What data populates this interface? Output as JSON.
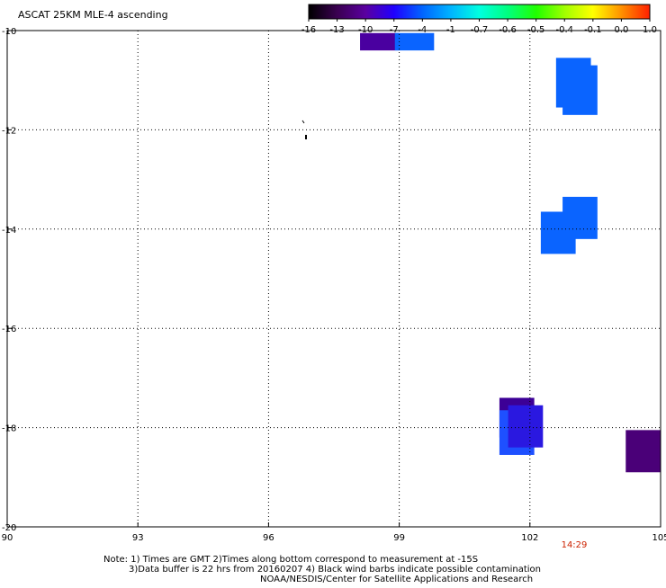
{
  "title": "ASCAT 25KM MLE-4 ascending",
  "colorbar": {
    "labels": [
      "-16",
      "-13",
      "-10",
      "-7",
      "-4",
      "-1",
      "-0.7",
      "-0.6",
      "-0.5",
      "-0.4",
      "-0.1",
      "0.0",
      "1.0"
    ],
    "colors": [
      "#000000",
      "#3a0050",
      "#5a00a0",
      "#2000ff",
      "#0064ff",
      "#00b4ff",
      "#00ffe0",
      "#00ff80",
      "#20ff00",
      "#a0ff00",
      "#ffff00",
      "#ff9000",
      "#ff2000"
    ]
  },
  "axes": {
    "x_ticks": [
      "90",
      "93",
      "96",
      "99",
      "102",
      "105"
    ],
    "y_ticks": [
      "-10",
      "-12",
      "-14",
      "-16",
      "-18",
      "-20"
    ],
    "x_range": [
      90,
      105
    ],
    "y_range": [
      -20,
      -10
    ],
    "grid": "dotted"
  },
  "swaths": [
    {
      "lon": [
        98.1,
        99.0
      ],
      "lat": [
        -10.4,
        -10.05
      ],
      "color": "#4a00a0"
    },
    {
      "lon": [
        98.9,
        99.8
      ],
      "lat": [
        -10.4,
        -10.05
      ],
      "color": "#0a64ff"
    },
    {
      "lon": [
        102.6,
        103.4
      ],
      "lat": [
        -11.55,
        -10.55
      ],
      "color": "#0a64ff"
    },
    {
      "lon": [
        102.75,
        103.55
      ],
      "lat": [
        -11.7,
        -10.7
      ],
      "color": "#0a64ff"
    },
    {
      "lon": [
        102.25,
        103.05
      ],
      "lat": [
        -14.5,
        -13.65
      ],
      "color": "#0a64ff"
    },
    {
      "lon": [
        102.75,
        103.55
      ],
      "lat": [
        -14.2,
        -13.35
      ],
      "color": "#0a64ff"
    },
    {
      "lon": [
        101.3,
        102.1
      ],
      "lat": [
        -18.2,
        -17.4
      ],
      "color": "#3c0096"
    },
    {
      "lon": [
        101.3,
        102.1
      ],
      "lat": [
        -18.55,
        -17.65
      ],
      "color": "#1e50ff"
    },
    {
      "lon": [
        101.5,
        102.3
      ],
      "lat": [
        -18.4,
        -17.55
      ],
      "color": "#2a18e0"
    },
    {
      "lon": [
        104.2,
        105.0
      ],
      "lat": [
        -18.9,
        -18.05
      ],
      "color": "#4a0078"
    }
  ],
  "time_label": "14:29",
  "time_color": "#cc2200",
  "notes": [
    "Note: 1) Times are GMT 2)Times along bottom correspond to measurement at -15S",
    "3)Data buffer is 22 hrs from 20160207 4) Black wind barbs indicate possible contamination",
    "NOAA/NESDIS/Center for Satellite Applications and Research"
  ]
}
